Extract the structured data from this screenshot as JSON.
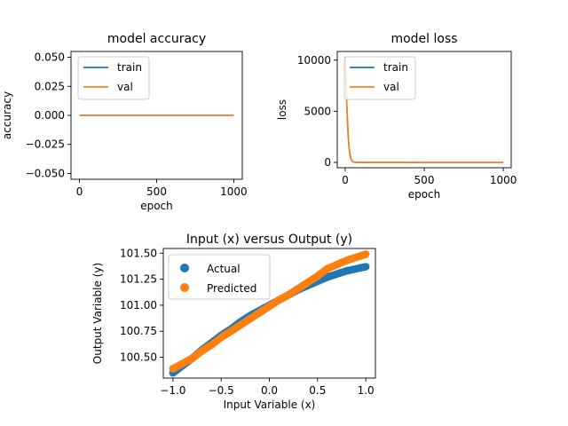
{
  "chart_data": [
    {
      "type": "line",
      "title": "model accuracy",
      "xlabel": "epoch",
      "ylabel": "accuracy",
      "xlim": [
        -55,
        1055
      ],
      "ylim": [
        -0.055,
        0.055
      ],
      "xticks": [
        0,
        500,
        1000
      ],
      "yticks": [
        -0.05,
        -0.025,
        0.0,
        0.025,
        0.05
      ],
      "ytick_labels": [
        "−0.050",
        "−0.025",
        "0.000",
        "0.025",
        "0.050"
      ],
      "legend": "top-left",
      "series": [
        {
          "name": "train",
          "color": "#1f77b4",
          "x": [
            0,
            1000
          ],
          "y": [
            0,
            0
          ]
        },
        {
          "name": "val",
          "color": "#ff7f0e",
          "x": [
            0,
            1000
          ],
          "y": [
            0,
            0
          ]
        }
      ]
    },
    {
      "type": "line",
      "title": "model loss",
      "xlabel": "epoch",
      "ylabel": "loss",
      "xlim": [
        -50,
        1050
      ],
      "ylim": [
        -520,
        10850
      ],
      "xticks": [
        0,
        500,
        1000
      ],
      "yticks": [
        0,
        5000,
        10000
      ],
      "ytick_labels": [
        "0",
        "5000",
        "10000"
      ],
      "legend": "top-left",
      "series": [
        {
          "name": "train",
          "color": "#1f77b4",
          "x": [
            0,
            5,
            10,
            15,
            20,
            25,
            30,
            35,
            40,
            50,
            60,
            80,
            100,
            200,
            500,
            1000
          ],
          "y": [
            10300,
            8000,
            5700,
            3800,
            2400,
            1400,
            800,
            420,
            210,
            60,
            20,
            8,
            5,
            3,
            2,
            1
          ]
        },
        {
          "name": "val",
          "color": "#ff7f0e",
          "x": [
            0,
            5,
            10,
            15,
            20,
            25,
            30,
            35,
            40,
            50,
            60,
            80,
            100,
            200,
            500,
            1000
          ],
          "y": [
            10350,
            8200,
            5900,
            4000,
            2550,
            1500,
            880,
            470,
            240,
            70,
            25,
            10,
            6,
            3,
            2,
            1
          ]
        }
      ]
    },
    {
      "type": "scatter",
      "title": "Input (x) versus Output (y)",
      "xlabel": "Input Variable (x)",
      "ylabel": "Output Variable (y)",
      "xlim": [
        -1.1,
        1.1
      ],
      "ylim": [
        100.3,
        101.545
      ],
      "xticks": [
        -1.0,
        -0.5,
        0.0,
        0.5,
        1.0
      ],
      "xtick_labels": [
        "−1.0",
        "−0.5",
        "0.0",
        "0.5",
        "1.0"
      ],
      "yticks": [
        100.5,
        100.75,
        101.0,
        101.25,
        101.5
      ],
      "ytick_labels": [
        "100.50",
        "100.75",
        "101.00",
        "101.25",
        "101.50"
      ],
      "legend": "top-left",
      "series": [
        {
          "name": "Actual",
          "color": "#1f77b4",
          "x": [
            -1.0,
            -0.9,
            -0.8,
            -0.7,
            -0.6,
            -0.5,
            -0.4,
            -0.3,
            -0.2,
            -0.1,
            0.0,
            0.1,
            0.2,
            0.3,
            0.4,
            0.5,
            0.6,
            0.7,
            0.8,
            0.9,
            1.0
          ],
          "y": [
            100.35,
            100.42,
            100.49,
            100.57,
            100.64,
            100.71,
            100.77,
            100.84,
            100.9,
            100.95,
            101.0,
            101.05,
            101.1,
            101.15,
            101.19,
            101.23,
            101.27,
            101.3,
            101.33,
            101.35,
            101.37
          ]
        },
        {
          "name": "Predicted",
          "color": "#ff7f0e",
          "x": [
            -1.0,
            -0.9,
            -0.8,
            -0.7,
            -0.6,
            -0.5,
            -0.4,
            -0.3,
            -0.2,
            -0.1,
            0.0,
            0.1,
            0.2,
            0.3,
            0.4,
            0.5,
            0.6,
            0.7,
            0.8,
            0.9,
            1.0
          ],
          "y": [
            100.39,
            100.44,
            100.49,
            100.56,
            100.62,
            100.69,
            100.75,
            100.81,
            100.87,
            100.93,
            100.99,
            101.05,
            101.1,
            101.16,
            101.22,
            101.28,
            101.35,
            101.39,
            101.43,
            101.46,
            101.49
          ]
        }
      ]
    }
  ]
}
